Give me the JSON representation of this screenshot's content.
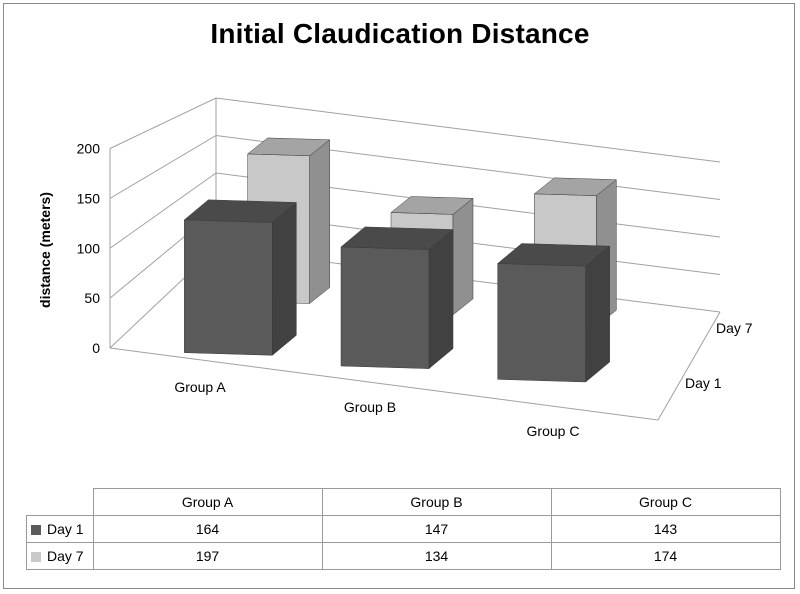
{
  "chart_data": {
    "type": "bar",
    "title": "Initial Claudication Distance",
    "ylabel": "distance (meters)",
    "ylim": [
      0,
      200
    ],
    "yticks": [
      0,
      50,
      100,
      150,
      200
    ],
    "grid": true,
    "categories": [
      "Group A",
      "Group B",
      "Group C"
    ],
    "series": [
      {
        "name": "Day 1",
        "values": [
          164,
          147,
          143
        ],
        "color": "#5a5a5a"
      },
      {
        "name": "Day 7",
        "values": [
          197,
          134,
          174
        ],
        "color": "#c8c8c8"
      }
    ],
    "table": {
      "headers": [
        "Group A",
        "Group B",
        "Group C"
      ],
      "rows": [
        {
          "label": "Day 1",
          "values": [
            "164",
            "147",
            "143"
          ]
        },
        {
          "label": "Day 7",
          "values": [
            "197",
            "134",
            "174"
          ]
        }
      ]
    }
  }
}
